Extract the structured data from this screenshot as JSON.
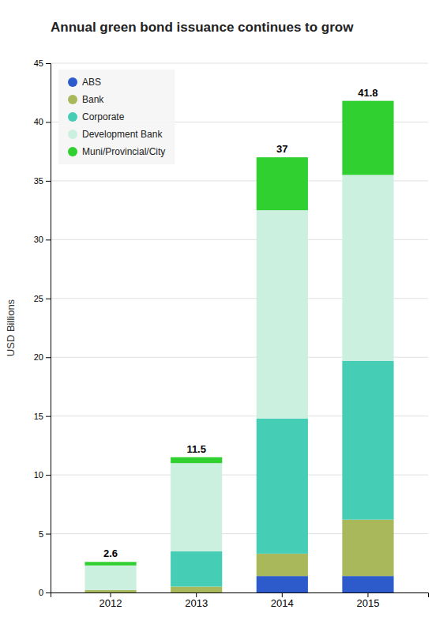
{
  "chart_data": {
    "type": "bar",
    "stacked": true,
    "title": "Annual green bond issuance continues to grow",
    "ylabel": "USD Billions",
    "categories": [
      "2012",
      "2013",
      "2014",
      "2015"
    ],
    "series": [
      {
        "name": "ABS",
        "color": "#2e5bcc",
        "values": [
          0.0,
          0.0,
          1.4,
          1.4
        ]
      },
      {
        "name": "Bank",
        "color": "#a8b85a",
        "values": [
          0.2,
          0.5,
          1.9,
          4.8
        ]
      },
      {
        "name": "Corporate",
        "color": "#45cdb5",
        "values": [
          0.0,
          3.0,
          11.5,
          13.5
        ]
      },
      {
        "name": "Development Bank",
        "color": "#ccf0e0",
        "values": [
          2.1,
          7.5,
          17.7,
          15.8
        ]
      },
      {
        "name": "Muni/Provincial/City",
        "color": "#30d030",
        "values": [
          0.3,
          0.5,
          4.5,
          6.3
        ]
      }
    ],
    "totals": [
      2.6,
      11.5,
      37,
      41.8
    ],
    "ylim": [
      0,
      45
    ],
    "yticks": [
      0,
      5,
      10,
      15,
      20,
      25,
      30,
      35,
      40,
      45
    ],
    "grid": true,
    "legend": "upper left"
  }
}
